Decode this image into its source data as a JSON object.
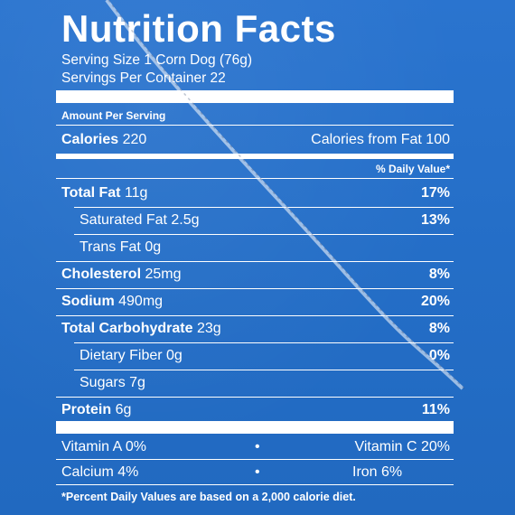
{
  "label": {
    "title": "Nutrition Facts",
    "serving_size": "Serving Size 1 Corn Dog (76g)",
    "servings_per_container": "Servings Per Container 22",
    "amount_per_serving": "Amount Per Serving",
    "calories_label": "Calories",
    "calories_value": "220",
    "calories_from_fat": "Calories from Fat 100",
    "daily_value_header": "% Daily Value*",
    "nutrients": [
      {
        "name": "Total Fat",
        "amount": "11g",
        "dv": "17%"
      },
      {
        "name": "Saturated Fat",
        "amount": "2.5g",
        "dv": "13%"
      },
      {
        "name": "Trans Fat",
        "amount": "0g",
        "dv": ""
      },
      {
        "name": "Cholesterol",
        "amount": "25mg",
        "dv": "8%"
      },
      {
        "name": "Sodium",
        "amount": "490mg",
        "dv": "20%"
      },
      {
        "name": "Total Carbohydrate",
        "amount": "23g",
        "dv": "8%"
      },
      {
        "name": "Dietary Fiber",
        "amount": "0g",
        "dv": "0%"
      },
      {
        "name": "Sugars",
        "amount": "7g",
        "dv": ""
      },
      {
        "name": "Protein",
        "amount": "6g",
        "dv": "11%"
      }
    ],
    "vitamins": [
      {
        "left": "Vitamin A 0%",
        "right": "Vitamin C 20%"
      },
      {
        "left": "Calcium 4%",
        "right": "Iron 6%"
      }
    ],
    "bullet": "•",
    "footnote": "*Percent Daily Values are based on a 2,000 calorie diet."
  },
  "colors": {
    "background": "#246ec7",
    "ink": "#ffffff"
  }
}
